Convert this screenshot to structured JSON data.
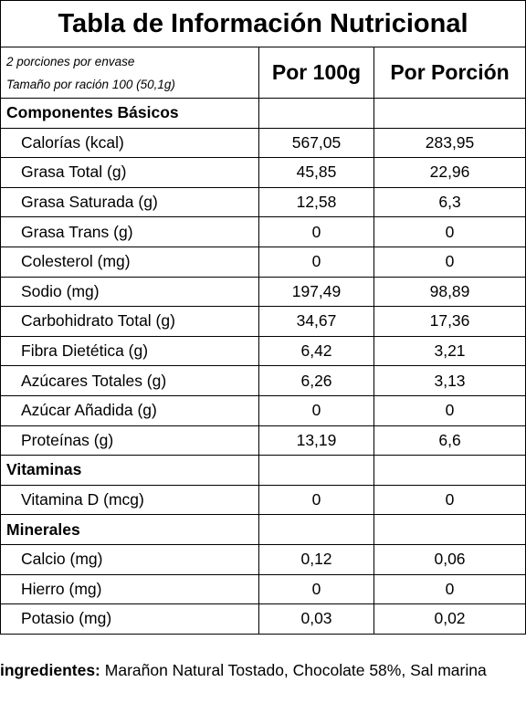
{
  "title": "Tabla de Información Nutricional",
  "servings_per_container": "2 porciones por envase",
  "serving_size": "Tamaño por ración 100 (50,1g)",
  "col_100g": "Por 100g",
  "col_portion": "Por Porción",
  "sections": [
    {
      "name": "Componentes Básicos",
      "rows": [
        {
          "label": "Calorías (kcal)",
          "v100": "567,05",
          "vport": "283,95"
        },
        {
          "label": "Grasa Total (g)",
          "v100": "45,85",
          "vport": "22,96"
        },
        {
          "label": "Grasa Saturada (g)",
          "v100": "12,58",
          "vport": "6,3"
        },
        {
          "label": "Grasa Trans (g)",
          "v100": "0",
          "vport": "0"
        },
        {
          "label": "Colesterol (mg)",
          "v100": "0",
          "vport": "0"
        },
        {
          "label": "Sodio (mg)",
          "v100": "197,49",
          "vport": "98,89"
        },
        {
          "label": "Carbohidrato Total (g)",
          "v100": "34,67",
          "vport": "17,36"
        },
        {
          "label": "Fibra Dietética (g)",
          "v100": "6,42",
          "vport": "3,21"
        },
        {
          "label": "Azúcares Totales (g)",
          "v100": "6,26",
          "vport": "3,13"
        },
        {
          "label": "Azúcar Añadida (g)",
          "v100": "0",
          "vport": "0"
        },
        {
          "label": "Proteínas (g)",
          "v100": "13,19",
          "vport": "6,6"
        }
      ]
    },
    {
      "name": "Vitaminas",
      "rows": [
        {
          "label": "Vitamina D (mcg)",
          "v100": "0",
          "vport": "0"
        }
      ]
    },
    {
      "name": "Minerales",
      "rows": [
        {
          "label": "Calcio (mg)",
          "v100": "0,12",
          "vport": "0,06"
        },
        {
          "label": "Hierro (mg)",
          "v100": "0",
          "vport": "0"
        },
        {
          "label": "Potasio (mg)",
          "v100": "0,03",
          "vport": "0,02"
        }
      ]
    }
  ],
  "ingredients_label": "ingredientes:",
  "ingredients_text": " Marañon Natural Tostado, Chocolate 58%, Sal marina"
}
